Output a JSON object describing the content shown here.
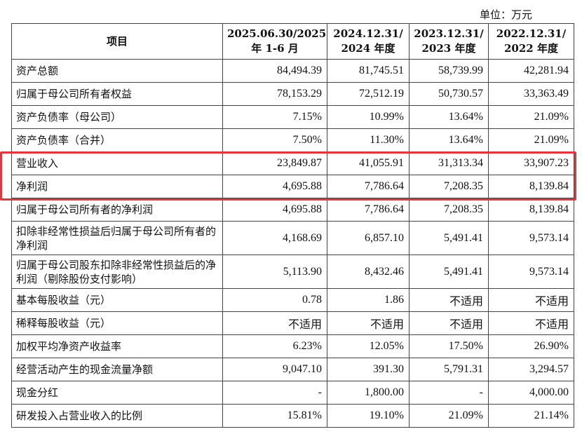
{
  "unit_label": "单位：万元",
  "header": {
    "item": "项目",
    "cols": [
      {
        "line1": "2025.06.30/2025",
        "line2": "年 1-6 月"
      },
      {
        "line1": "2024.12.31/",
        "line2": "2024 年度"
      },
      {
        "line1": "2023.12.31/",
        "line2": "2023 年度"
      },
      {
        "line1": "2022.12.31/",
        "line2": "2022 年度"
      }
    ]
  },
  "rows": [
    {
      "label": "资产总额",
      "values": [
        "84,494.39",
        "81,745.51",
        "58,739.99",
        "42,281.94"
      ]
    },
    {
      "label": "归属于母公司所有者权益",
      "values": [
        "78,153.29",
        "72,512.19",
        "50,730.57",
        "33,363.49"
      ]
    },
    {
      "label": "资产负债率（母公司）",
      "values": [
        "7.15%",
        "10.99%",
        "13.64%",
        "21.09%"
      ]
    },
    {
      "label": "资产负债率（合并）",
      "values": [
        "7.50%",
        "11.30%",
        "13.64%",
        "21.09%"
      ]
    },
    {
      "label": "营业收入",
      "values": [
        "23,849.87",
        "41,055.91",
        "31,313.34",
        "33,907.23"
      ]
    },
    {
      "label": "净利润",
      "values": [
        "4,695.88",
        "7,786.64",
        "7,208.35",
        "8,139.84"
      ]
    },
    {
      "label": "归属于母公司所有者的净利润",
      "values": [
        "4,695.88",
        "7,786.64",
        "7,208.35",
        "8,139.84"
      ]
    },
    {
      "label": "扣除非经常性损益后归属于母公司所有者的净利润",
      "values": [
        "4,168.69",
        "6,857.10",
        "5,491.41",
        "9,573.14"
      ]
    },
    {
      "label": "归属于母公司股东扣除非经常性损益后的净利润（剔除股份支付影响）",
      "values": [
        "5,113.90",
        "8,432.46",
        "5,491.41",
        "9,573.14"
      ]
    },
    {
      "label": "基本每股收益（元）",
      "values": [
        "0.78",
        "1.86",
        "不适用",
        "不适用"
      ]
    },
    {
      "label": "稀释每股收益（元）",
      "values": [
        "不适用",
        "不适用",
        "不适用",
        "不适用"
      ]
    },
    {
      "label": "加权平均净资产收益率",
      "values": [
        "6.23%",
        "12.05%",
        "17.50%",
        "26.90%"
      ]
    },
    {
      "label": "经营活动产生的现金流量净额",
      "values": [
        "9,047.10",
        "391.30",
        "5,791.31",
        "3,294.57"
      ]
    },
    {
      "label": "现金分红",
      "values": [
        "-",
        "1,800.00",
        "-",
        "4,000.00"
      ]
    },
    {
      "label": "研发投入占营业收入的比例",
      "values": [
        "15.81%",
        "19.10%",
        "21.09%",
        "21.14%"
      ]
    }
  ],
  "highlight_color": "#e8343a"
}
